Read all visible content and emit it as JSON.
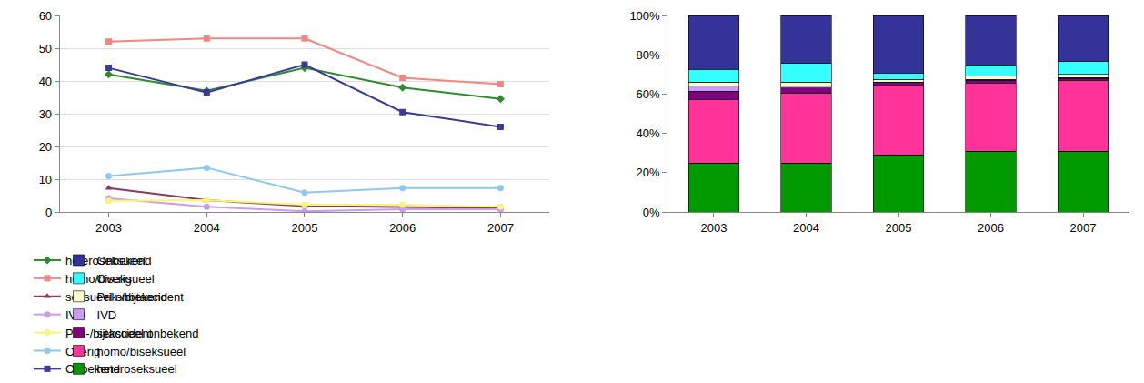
{
  "chart_data": [
    {
      "type": "line",
      "categories": [
        "2003",
        "2004",
        "2005",
        "2006",
        "2007"
      ],
      "ylim": [
        0,
        60
      ],
      "yticks": [
        0,
        10,
        20,
        30,
        40,
        50,
        60
      ],
      "grid": true,
      "legend": "bottom",
      "series": [
        {
          "name": "heteroseksueel",
          "color": "#2e8b2e",
          "marker": "diamond",
          "values": [
            42,
            37,
            44,
            38,
            34.5
          ]
        },
        {
          "name": "homo/biseksueel",
          "color": "#f4857f",
          "marker": "square",
          "values": [
            52,
            53,
            53,
            41,
            39
          ]
        },
        {
          "name": "seksueel onbekend",
          "color": "#8b3a62",
          "marker": "triangle-up",
          "values": [
            7.3,
            3.6,
            1.8,
            1.6,
            1.2
          ]
        },
        {
          "name": "IVD",
          "color": "#c89cf0",
          "marker": "circle",
          "values": [
            4.2,
            1.6,
            0.2,
            0.8,
            0.8
          ]
        },
        {
          "name": "Prik-/bijtaccident",
          "color": "#f5f57a",
          "marker": "circle",
          "values": [
            3.4,
            3.6,
            2.2,
            2.2,
            1.6
          ]
        },
        {
          "name": "Overig",
          "color": "#8ec8f0",
          "marker": "circle",
          "values": [
            11,
            13.5,
            5.9,
            7.3,
            7.3
          ]
        },
        {
          "name": "Onbekend",
          "color": "#3a3a9a",
          "marker": "square",
          "values": [
            44,
            36.5,
            45,
            30.5,
            26
          ]
        }
      ]
    },
    {
      "type": "bar",
      "stacked": true,
      "categories": [
        "2003",
        "2004",
        "2005",
        "2006",
        "2007"
      ],
      "ylim": [
        0,
        100
      ],
      "yticks": [
        {
          "value": 0,
          "label": "0%"
        },
        {
          "value": 20,
          "label": "20%"
        },
        {
          "value": 40,
          "label": "40%"
        },
        {
          "value": 60,
          "label": "60%"
        },
        {
          "value": 80,
          "label": "80%"
        },
        {
          "value": 100,
          "label": "100%"
        }
      ],
      "grid": false,
      "legend": "bottom",
      "series": [
        {
          "name": "heteroseksueel",
          "color": "#009900",
          "values": [
            25,
            25,
            29,
            31,
            31
          ]
        },
        {
          "name": "homo/biseksueel",
          "color": "#ff3399",
          "values": [
            32,
            35.5,
            35.5,
            34.5,
            36
          ]
        },
        {
          "name": "seksueel onbekend",
          "color": "#800080",
          "values": [
            4.5,
            2.5,
            1.5,
            1.5,
            1
          ]
        },
        {
          "name": "IVD",
          "color": "#cc99ff",
          "values": [
            2.5,
            1,
            0.2,
            0.5,
            0.5
          ]
        },
        {
          "name": "Prik-/bijtaccident",
          "color": "#ffffcc",
          "values": [
            2,
            2,
            1.3,
            1.5,
            1.5
          ]
        },
        {
          "name": "Overig",
          "color": "#33ffff",
          "values": [
            6.5,
            9.5,
            3,
            6,
            6.5
          ]
        },
        {
          "name": "Onbekend",
          "color": "#333399",
          "values": [
            27.5,
            24.5,
            29.5,
            25,
            23.5
          ]
        }
      ]
    }
  ]
}
